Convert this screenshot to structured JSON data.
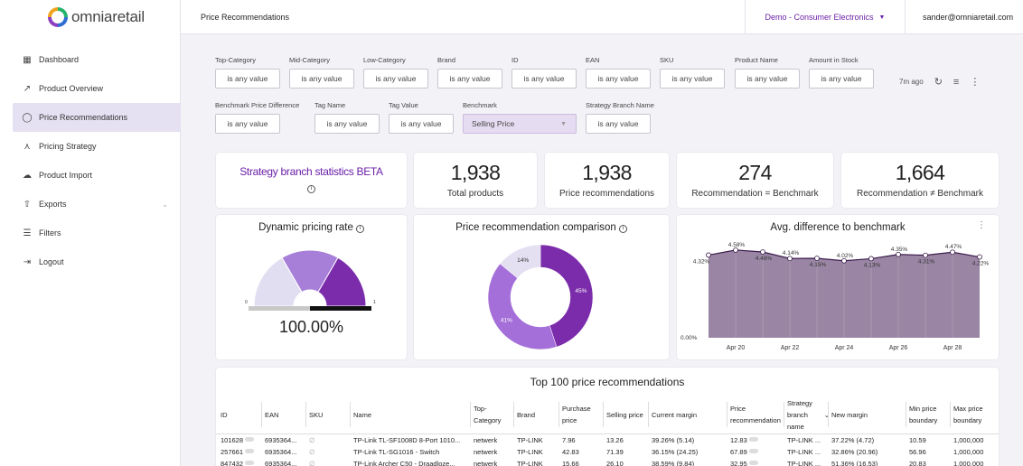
{
  "brand": {
    "name": "omniaretail"
  },
  "sidebar": {
    "items": [
      {
        "label": "Dashboard",
        "icon": "dashboard-icon"
      },
      {
        "label": "Product Overview",
        "icon": "trend-icon"
      },
      {
        "label": "Price Recommendations",
        "icon": "circle-icon"
      },
      {
        "label": "Pricing Strategy",
        "icon": "network-icon"
      },
      {
        "label": "Product Import",
        "icon": "cloud-upload-icon"
      },
      {
        "label": "Exports",
        "icon": "export-icon"
      },
      {
        "label": "Filters",
        "icon": "filter-lines-icon"
      },
      {
        "label": "Logout",
        "icon": "logout-icon"
      }
    ]
  },
  "header": {
    "title": "Price Recommendations",
    "tenant": "Demo - Consumer Electronics",
    "user": "sander@omniaretail.com"
  },
  "filters": {
    "top_category": {
      "label": "Top-Category",
      "value": "is any value"
    },
    "mid_category": {
      "label": "Mid-Category",
      "value": "is any value"
    },
    "low_category": {
      "label": "Low-Category",
      "value": "is any value"
    },
    "brand": {
      "label": "Brand",
      "value": "is any value"
    },
    "id": {
      "label": "ID",
      "value": "is any value"
    },
    "ean": {
      "label": "EAN",
      "value": "is any value"
    },
    "sku": {
      "label": "SKU",
      "value": "is any value"
    },
    "product_name": {
      "label": "Product Name",
      "value": "is any value"
    },
    "amount_in_stock": {
      "label": "Amount in Stock",
      "value": "is any value"
    },
    "benchmark_price_difference": {
      "label": "Benchmark Price Difference",
      "value": "is any value"
    },
    "tag_name": {
      "label": "Tag Name",
      "value": "is any value"
    },
    "tag_value": {
      "label": "Tag Value",
      "value": "is any value"
    },
    "benchmark": {
      "label": "Benchmark",
      "value": "Selling Price"
    },
    "strategy_branch_name": {
      "label": "Strategy Branch Name",
      "value": "is any value"
    }
  },
  "toolbar": {
    "last_updated": "7m ago"
  },
  "strategy_card": {
    "title": "Strategy branch statistics BETA"
  },
  "stats": [
    {
      "value": "1,938",
      "caption": "Total products"
    },
    {
      "value": "1,938",
      "caption": "Price recommendations"
    },
    {
      "value": "274",
      "caption": "Recommendation = Benchmark"
    },
    {
      "value": "1,664",
      "caption": "Recommendation ≠ Benchmark"
    }
  ],
  "gauge": {
    "title": "Dynamic pricing rate",
    "value_text": "100.00%",
    "value": 1.0,
    "min_label": "0",
    "max_label": "1"
  },
  "chart_data": [
    {
      "type": "pie",
      "title": "Price recommendation comparison",
      "labels": [
        "45%",
        "41%",
        "14%"
      ],
      "values": [
        45,
        41,
        14
      ],
      "colors": [
        "#7b2cab",
        "#a46fd9",
        "#e4dff1"
      ]
    },
    {
      "type": "area",
      "title": "Avg. difference to benchmark",
      "x": [
        "Apr 19",
        "Apr 20",
        "Apr 21",
        "Apr 22",
        "Apr 23",
        "Apr 24",
        "Apr 25",
        "Apr 26",
        "Apr 27",
        "Apr 28",
        "Apr 29"
      ],
      "values": [
        4.32,
        4.58,
        4.48,
        4.14,
        4.15,
        4.02,
        4.13,
        4.35,
        4.31,
        4.47,
        4.22
      ],
      "labels": [
        "4.32%",
        "4.58%",
        "4.48%",
        "4.14%",
        "4.15%",
        "4.02%",
        "4.13%",
        "4.35%",
        "4.31%",
        "4.47%",
        "4.22%"
      ],
      "x_ticks": [
        "Apr 20",
        "Apr 22",
        "Apr 24",
        "Apr 26",
        "Apr 28"
      ],
      "y_tick": "0.00%",
      "ylim": [
        0,
        5
      ],
      "grid": false,
      "color": "#9a86a4"
    }
  ],
  "table": {
    "title": "Top 100 price recommendations",
    "columns": [
      "ID",
      "EAN",
      "SKU",
      "Name",
      "Top-Category",
      "Brand",
      "Purchase price",
      "Selling price",
      "Current margin",
      "Price recommendation",
      "Strategy branch name",
      "New margin",
      "Min price boundary",
      "Max price boundary"
    ],
    "rows": [
      [
        "101628",
        "6935364...",
        "∅",
        "TP-Link TL-SF1008D 8-Port 1010...",
        "netwerk",
        "TP-LINK",
        "7.96",
        "13.26",
        "39.26% (5.14)",
        "12.83",
        "TP-LINK ...",
        "37.22% (4.72)",
        "10.59",
        "1,000,000"
      ],
      [
        "257661",
        "6935364...",
        "∅",
        "TP-Link TL-SG1016 - Switch",
        "netwerk",
        "TP-LINK",
        "42.83",
        "71.39",
        "36.15% (24.25)",
        "67.89",
        "TP-LINK ...",
        "32.86% (20.96)",
        "56.96",
        "1,000,000"
      ],
      [
        "847432",
        "6935364...",
        "∅",
        "TP-Link Archer C50 - Draadloze...",
        "netwerk",
        "TP-LINK",
        "15.66",
        "26.10",
        "38.59% (9.84)",
        "32.95",
        "TP-LINK ...",
        "51.36% (16.53)",
        "20.83",
        "1,000,000"
      ]
    ]
  }
}
